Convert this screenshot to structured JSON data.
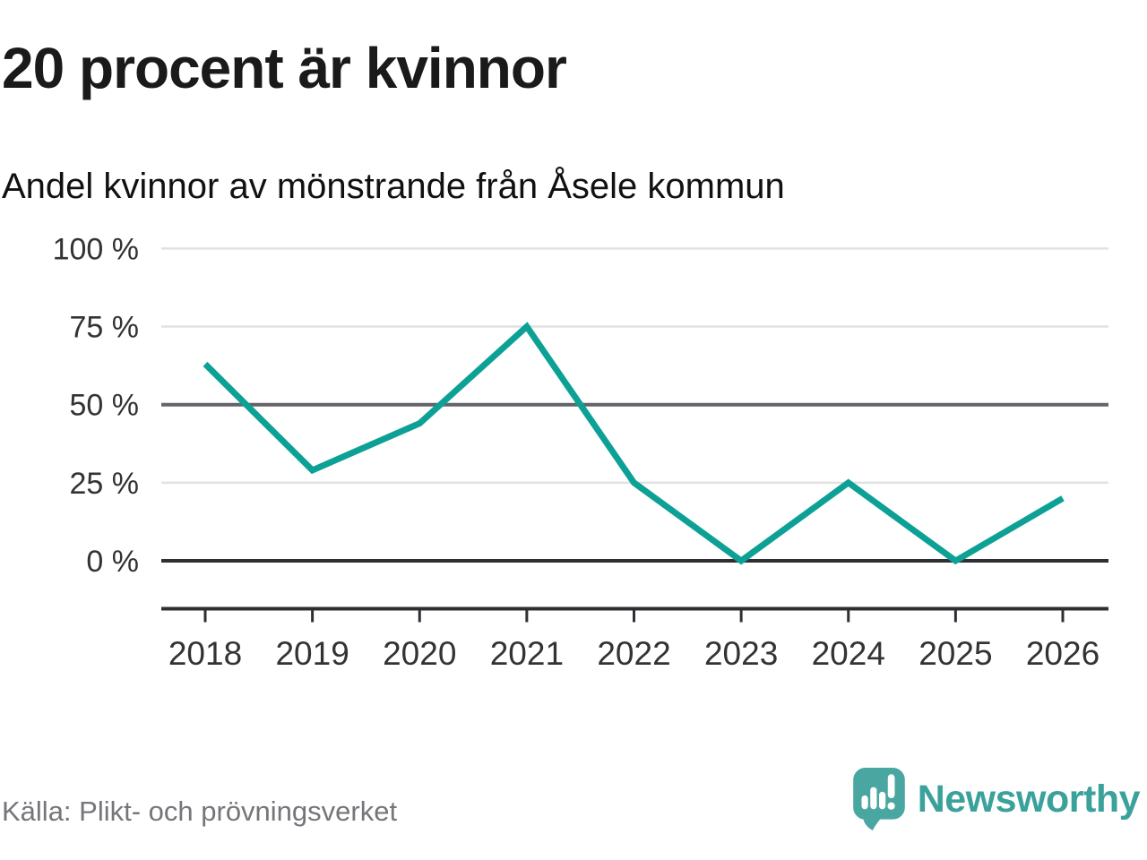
{
  "header": {
    "title": "20 procent är kvinnor",
    "subtitle": "Andel kvinnor av mönstrande från Åsele kommun"
  },
  "chart_data": {
    "type": "line",
    "title": "20 procent är kvinnor",
    "subtitle": "Andel kvinnor av mönstrande från Åsele kommun",
    "x": [
      2018,
      2019,
      2020,
      2021,
      2022,
      2023,
      2024,
      2025,
      2026
    ],
    "series": [
      {
        "name": "Andel kvinnor av mönstrande, procent",
        "values": [
          63,
          29,
          44,
          75,
          25,
          0,
          25,
          0,
          20
        ]
      }
    ],
    "xlabel": "",
    "ylabel": "",
    "ylim": [
      0,
      100
    ],
    "yticks": [
      0,
      25,
      50,
      75,
      100
    ],
    "ytick_labels": [
      "0 %",
      "25 %",
      "50 %",
      "75 %",
      "100 %"
    ],
    "grid": "horizontal-only",
    "legend": "none",
    "emphasized_gridline": 50,
    "baseline_gridline": 0,
    "line_color": "#0da195"
  },
  "footer": {
    "source": "Källa: Plikt- och prövningsverket",
    "brand": "Newsworthy"
  },
  "colors": {
    "accent_line": "#0da195",
    "grid_light": "#e2e2e2",
    "grid_emphasis": "#63636a",
    "axis_dark": "#2f2f33",
    "tick_label": "#333333",
    "title_text": "#1a1a1a",
    "source_text": "#75757a",
    "logo_fill": "#4aa6a1",
    "logo_word": "#3aa19b"
  }
}
